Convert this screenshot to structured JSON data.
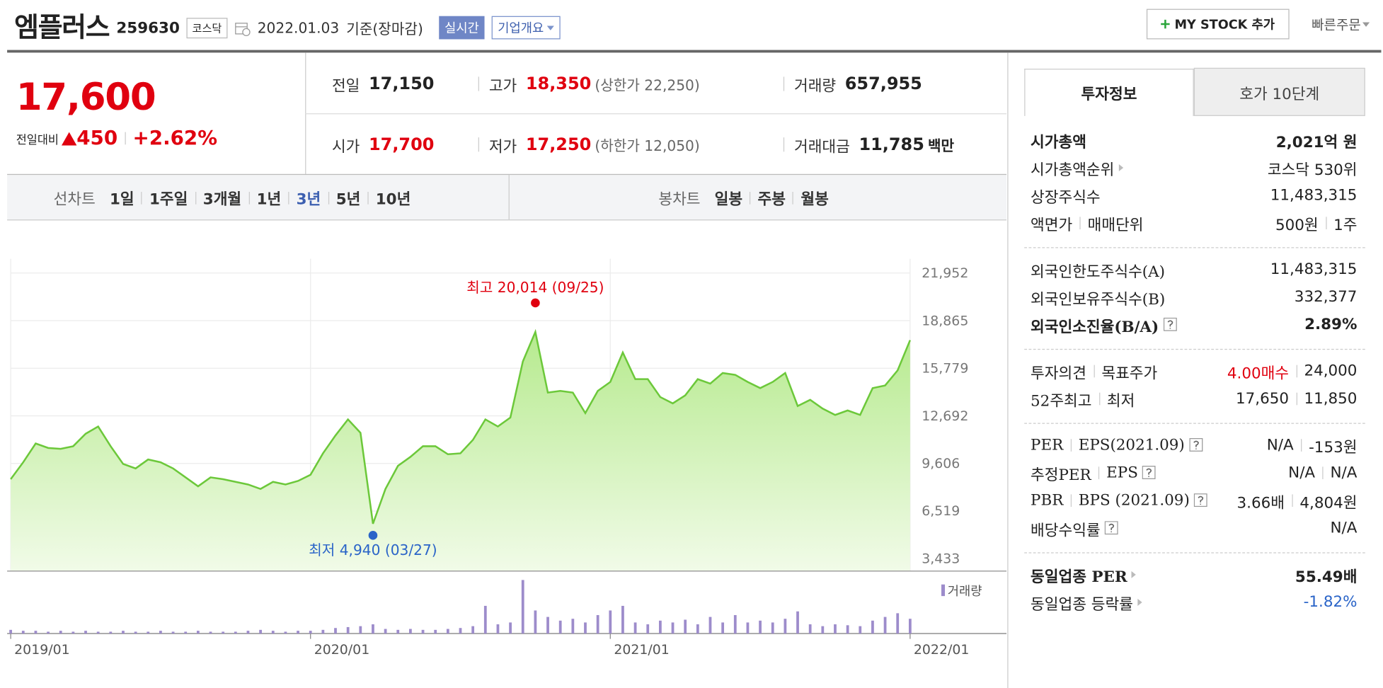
{
  "header": {
    "name": "엠플러스",
    "code": "259630",
    "market": "코스닥",
    "date": "2022.01.03",
    "basis": "기준(장마감)",
    "realtime": "실시간",
    "company": "기업개요",
    "mystock": "MY STOCK 추가",
    "quick": "빠른주문"
  },
  "quote": {
    "price": "17,600",
    "change_label": "전일대비",
    "change": "450",
    "rate": "+2.62%",
    "info": [
      {
        "label": "전일",
        "value": "17,150"
      },
      {
        "label": "고가",
        "value": "18,350",
        "extra": "(상한가 22,250)",
        "color": "#e0000f"
      },
      {
        "label": "거래량",
        "value": "657,955"
      },
      {
        "label": "시가",
        "value": "17,700",
        "color": "#e0000f"
      },
      {
        "label": "저가",
        "value": "17,250",
        "extra": "(하한가 12,050)",
        "color": "#e0000f"
      },
      {
        "label": "거래대금",
        "value": "11,785",
        "unit": "백만"
      }
    ]
  },
  "tabs": {
    "line_label": "선차트",
    "periods": [
      "1일",
      "1주일",
      "3개월",
      "1년",
      "3년",
      "5년",
      "10년"
    ],
    "active_index": 4,
    "candle_label": "봉차트",
    "candles": [
      "일봉",
      "주봉",
      "월봉"
    ]
  },
  "side": {
    "tabs": [
      "투자정보",
      "호가 10단계"
    ],
    "active_index": 0,
    "sections": [
      [
        {
          "label": [
            "시가총액"
          ],
          "value": [
            "2,021억 원"
          ],
          "strong": true
        },
        {
          "label": [
            "시가총액순위"
          ],
          "link": true,
          "value": [
            "코스닥 530위"
          ]
        },
        {
          "label": [
            "상장주식수"
          ],
          "value": [
            "11,483,315"
          ]
        },
        {
          "label": [
            "액면가",
            "매매단위"
          ],
          "value": [
            "500원",
            "1주"
          ]
        }
      ],
      [
        {
          "label": [
            "외국인한도주식수(A)"
          ],
          "value": [
            "11,483,315"
          ]
        },
        {
          "label": [
            "외국인보유주식수(B)"
          ],
          "value": [
            "332,377"
          ]
        },
        {
          "label": [
            "외국인소진율(B/A)"
          ],
          "help": true,
          "value": [
            "2.89%"
          ],
          "strong": true
        }
      ],
      [
        {
          "label": [
            "투자의견",
            "목표주가"
          ],
          "value": [
            "4.00매수",
            "24,000"
          ],
          "value_color": "#e0000f"
        },
        {
          "label": [
            "52주최고",
            "최저"
          ],
          "value": [
            "17,650",
            "11,850"
          ]
        }
      ],
      [
        {
          "label": [
            "PER",
            "EPS(2021.09)"
          ],
          "help": true,
          "value": [
            "N/A",
            "-153원"
          ]
        },
        {
          "label": [
            "추정PER",
            "EPS"
          ],
          "help": true,
          "value": [
            "N/A",
            "N/A"
          ]
        },
        {
          "label": [
            "PBR",
            "BPS (2021.09)"
          ],
          "help": true,
          "value": [
            "3.66배",
            "4,804원"
          ]
        },
        {
          "label": [
            "배당수익률"
          ],
          "help": true,
          "value": [
            "N/A"
          ]
        }
      ],
      [
        {
          "label": [
            "동일업종 PER"
          ],
          "link": true,
          "value": [
            "55.49배"
          ],
          "strong": true
        },
        {
          "label": [
            "동일업종 등락률"
          ],
          "link": true,
          "value": [
            "-1.82%"
          ],
          "value_color": "#2a64c8"
        }
      ]
    ]
  },
  "chart_data": {
    "type": "area",
    "color": "#6cc83a",
    "fill": [
      "#b6ea8e",
      "#f1fbe8"
    ],
    "xticks": [
      "2019/01",
      "2020/01",
      "2021/01",
      "2022/01"
    ],
    "ylim": [
      3433,
      21952
    ],
    "yticks": [
      {
        "value": 21952,
        "label": "21,952"
      },
      {
        "value": 18865,
        "label": "18,865"
      },
      {
        "value": 15779,
        "label": "15,779"
      },
      {
        "value": 12692,
        "label": "12,692"
      },
      {
        "value": 9606,
        "label": "9,606"
      },
      {
        "value": 6519,
        "label": "6,519"
      },
      {
        "value": 3433,
        "label": "3,433"
      }
    ],
    "grid": true,
    "values": [
      8580,
      9680,
      10900,
      10610,
      10550,
      10720,
      11530,
      12000,
      10720,
      9570,
      9280,
      9860,
      9680,
      9280,
      8700,
      8120,
      8700,
      8580,
      8410,
      8240,
      7950,
      8410,
      8240,
      8470,
      8870,
      10260,
      11420,
      12460,
      11590,
      5690,
      7950,
      9450,
      10030,
      10720,
      10720,
      10200,
      10260,
      11130,
      12460,
      12000,
      12580,
      16220,
      18130,
      14200,
      14310,
      14200,
      12870,
      14310,
      14890,
      16800,
      15070,
      15070,
      13910,
      13500,
      14020,
      15070,
      14780,
      15470,
      15350,
      14890,
      14490,
      14890,
      15470,
      13330,
      13730,
      13160,
      12750,
      13040,
      12750,
      14490,
      14660,
      15640,
      17600
    ],
    "annotations": [
      {
        "text": "최고 20,014 (09/25)",
        "value": 20014,
        "kind": "max",
        "color": "#e0000f"
      },
      {
        "text": "최저 4,940 (03/27)",
        "value": 4940,
        "kind": "min",
        "color": "#2a64c8"
      }
    ],
    "volume": {
      "name": "거래량",
      "color": "#9d8ccb",
      "values": [
        4,
        3,
        3,
        2,
        3,
        2,
        3,
        2,
        2,
        3,
        2,
        2,
        3,
        2,
        2,
        3,
        2,
        2,
        2,
        3,
        4,
        3,
        2,
        3,
        3,
        4,
        6,
        7,
        8,
        10,
        5,
        4,
        5,
        4,
        4,
        5,
        6,
        8,
        30,
        10,
        12,
        58,
        25,
        18,
        14,
        16,
        12,
        20,
        25,
        30,
        12,
        10,
        14,
        12,
        15,
        10,
        18,
        12,
        20,
        12,
        14,
        12,
        16,
        24,
        10,
        8,
        10,
        9,
        8,
        14,
        18,
        22,
        16
      ]
    }
  }
}
